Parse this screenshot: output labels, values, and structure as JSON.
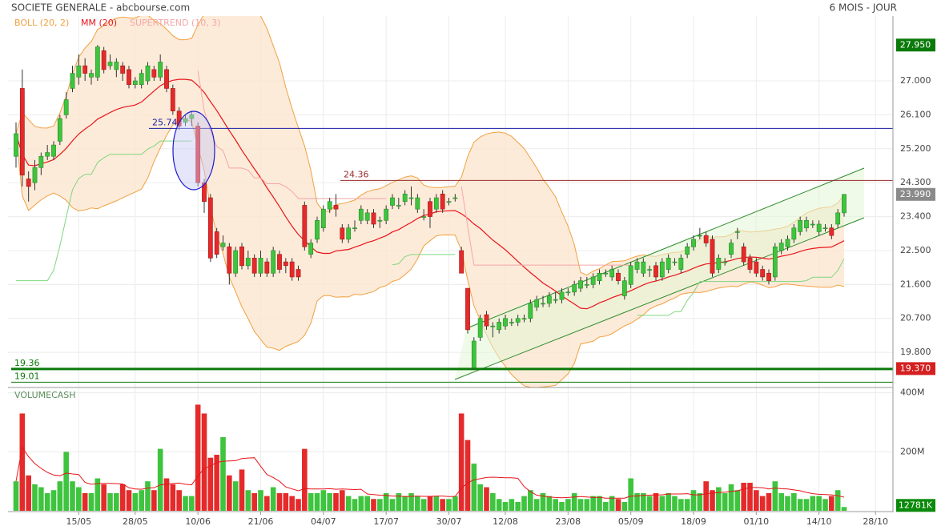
{
  "chart_data": {
    "type": "candlestick",
    "title": "SOCIETE GENERALE - abcbourse.com",
    "subtitle": "6 MOIS - JOUR",
    "indicators": [
      {
        "name": "BOLL (20, 2)",
        "kind": "bollinger",
        "period": 20,
        "k": 2,
        "color": "#f0a040",
        "fill": "#fde6cf"
      },
      {
        "name": "MM (20)",
        "kind": "ma",
        "period": 20,
        "color": "#e8141b"
      },
      {
        "name": "SUPERTREND (10, 3)",
        "kind": "supertrend",
        "period": 10,
        "multiplier": 3,
        "color": "#f4a6a6",
        "color_up": "#7fd67f"
      }
    ],
    "categories": [
      null,
      null,
      null,
      null,
      null,
      null,
      null,
      null,
      null,
      null,
      "15/05",
      null,
      null,
      null,
      null,
      null,
      null,
      null,
      null,
      "28/05",
      null,
      null,
      null,
      null,
      null,
      null,
      null,
      null,
      null,
      "10/06",
      null,
      null,
      null,
      null,
      null,
      null,
      null,
      null,
      null,
      "21/06",
      null,
      null,
      null,
      null,
      null,
      null,
      null,
      null,
      null,
      "04/07",
      null,
      null,
      null,
      null,
      null,
      null,
      null,
      null,
      null,
      "17/07",
      null,
      null,
      null,
      null,
      null,
      null,
      null,
      null,
      null,
      "30/07",
      null,
      null,
      null,
      null,
      null,
      null,
      null,
      null,
      "12/08",
      null,
      null,
      null,
      null,
      null,
      null,
      null,
      null,
      null,
      "23/08",
      null,
      null,
      null,
      null,
      null,
      null,
      null,
      null,
      null,
      "05/09",
      null,
      null,
      null,
      null,
      null,
      null,
      null,
      null,
      null,
      "18/09",
      null,
      null,
      null,
      null,
      null,
      null,
      null,
      null,
      null,
      "01/10",
      null,
      null,
      null,
      null,
      null,
      null,
      null,
      null,
      null,
      "14/10",
      null,
      null,
      null,
      null,
      null,
      null,
      null,
      null,
      "28/10"
    ],
    "open": [
      25.0,
      26.8,
      24.4,
      24.3,
      24.7,
      25.0,
      25.0,
      25.4,
      26.1,
      26.8,
      27.1,
      27.4,
      27.1,
      27.1,
      27.8,
      27.4,
      27.3,
      27.4,
      27.3,
      26.9,
      26.9,
      27.0,
      27.3,
      27.1,
      27.3,
      26.8,
      26.2,
      25.9,
      26.0,
      25.8,
      24.3,
      23.9,
      23.0,
      22.6,
      22.6,
      21.9,
      22.6,
      22.1,
      22.3,
      21.9,
      22.2,
      21.9,
      22.4,
      22.2,
      22.2,
      22.0,
      23.7,
      22.4,
      22.8,
      23.1,
      23.6,
      23.7,
      23.1,
      22.8,
      23.1,
      23.3,
      23.3,
      23.5,
      23.3,
      23.3,
      23.7,
      23.7,
      23.8,
      23.9,
      23.6,
      23.4,
      23.8,
      23.6,
      24.0,
      23.8,
      23.9,
      22.5,
      21.5,
      19.4,
      20.2,
      20.8,
      20.5,
      20.4,
      20.5,
      20.6,
      20.6,
      20.7,
      20.7,
      21.0,
      21.1,
      21.1,
      21.2,
      21.2,
      21.4,
      21.4,
      21.5,
      21.6,
      21.6,
      21.7,
      21.9,
      21.8,
      21.9,
      21.3,
      21.6,
      22.0,
      21.9,
      22.0,
      22.1,
      21.8,
      22.0,
      22.2,
      22.0,
      22.4,
      22.6,
      22.9,
      22.9,
      22.8,
      22.0,
      22.2,
      22.4,
      23.0,
      22.6,
      22.3,
      22.2,
      22.0,
      21.9,
      21.8,
      22.5,
      22.6,
      22.8,
      23.0,
      23.1,
      23.2,
      23.0,
      23.1,
      23.1,
      23.2,
      23.5,
      null,
      null,
      null,
      null,
      null
    ],
    "high": [
      25.9,
      27.3,
      24.6,
      24.9,
      25.1,
      25.3,
      25.4,
      26.1,
      26.7,
      27.4,
      27.7,
      27.6,
      27.3,
      27.95,
      27.9,
      27.7,
      27.6,
      27.5,
      27.4,
      27.1,
      27.3,
      27.5,
      27.4,
      27.7,
      27.4,
      26.9,
      26.3,
      26.1,
      26.2,
      25.9,
      24.4,
      24.0,
      23.1,
      22.9,
      22.7,
      22.6,
      22.7,
      22.5,
      22.4,
      22.5,
      22.3,
      22.6,
      22.5,
      22.3,
      22.3,
      22.1,
      23.8,
      22.8,
      23.4,
      23.7,
      23.9,
      24.0,
      23.2,
      23.2,
      23.3,
      23.7,
      23.6,
      23.6,
      23.4,
      23.7,
      24.0,
      23.9,
      24.1,
      24.2,
      24.0,
      23.6,
      23.9,
      24.0,
      24.1,
      23.9,
      24.0,
      22.6,
      21.5,
      20.2,
      20.8,
      20.9,
      20.6,
      20.7,
      20.8,
      20.7,
      20.8,
      20.8,
      21.2,
      21.3,
      21.3,
      21.4,
      21.4,
      21.5,
      21.5,
      21.7,
      21.8,
      21.8,
      21.9,
      22.0,
      22.0,
      22.1,
      22.0,
      21.8,
      22.2,
      22.3,
      22.3,
      22.1,
      22.2,
      22.3,
      22.4,
      22.3,
      22.4,
      22.7,
      22.9,
      23.1,
      23.0,
      22.9,
      22.4,
      22.3,
      22.8,
      23.1,
      22.7,
      22.4,
      22.3,
      22.1,
      22.0,
      22.7,
      22.8,
      22.9,
      23.2,
      23.4,
      23.4,
      23.3,
      23.3,
      23.2,
      23.2,
      23.6,
      24.0,
      null,
      null,
      null,
      null,
      null
    ],
    "low": [
      24.7,
      24.2,
      23.8,
      24.1,
      24.5,
      24.9,
      24.9,
      25.3,
      26.0,
      26.7,
      26.9,
      27.0,
      26.9,
      27.0,
      27.2,
      27.3,
      27.1,
      27.0,
      26.8,
      26.8,
      26.8,
      26.9,
      27.0,
      27.0,
      26.7,
      26.1,
      25.7,
      25.8,
      25.8,
      24.2,
      23.5,
      22.2,
      22.3,
      22.5,
      21.6,
      21.8,
      22.0,
      22.0,
      21.8,
      21.8,
      21.8,
      21.8,
      21.9,
      21.9,
      21.7,
      21.7,
      22.5,
      22.3,
      22.7,
      23.0,
      23.5,
      23.4,
      22.7,
      22.7,
      23.0,
      23.2,
      23.2,
      23.1,
      23.1,
      23.2,
      23.6,
      23.6,
      23.7,
      23.7,
      23.5,
      23.3,
      23.1,
      23.5,
      23.5,
      23.7,
      23.8,
      21.9,
      20.3,
      19.4,
      20.1,
      20.4,
      20.2,
      20.3,
      20.4,
      20.5,
      20.5,
      20.6,
      20.6,
      20.9,
      21.0,
      21.0,
      21.1,
      21.1,
      21.3,
      21.3,
      21.4,
      21.5,
      21.5,
      21.6,
      21.8,
      21.7,
      21.6,
      21.2,
      21.5,
      21.9,
      21.8,
      21.8,
      21.7,
      21.7,
      21.9,
      22.1,
      21.9,
      22.3,
      22.5,
      22.8,
      22.6,
      21.8,
      21.9,
      22.1,
      22.3,
      22.8,
      22.1,
      21.9,
      21.8,
      21.7,
      21.6,
      21.7,
      22.4,
      22.5,
      22.7,
      22.9,
      23.0,
      23.1,
      22.9,
      23.0,
      22.8,
      23.1,
      23.4,
      null,
      null,
      null,
      null,
      null
    ],
    "close": [
      25.6,
      24.5,
      24.2,
      24.7,
      25.0,
      25.1,
      25.3,
      26.0,
      26.5,
      27.2,
      27.4,
      27.2,
      27.2,
      27.9,
      27.3,
      27.5,
      27.5,
      27.2,
      26.9,
      27.0,
      27.2,
      27.4,
      27.1,
      27.5,
      26.8,
      26.2,
      25.8,
      26.0,
      26.1,
      24.3,
      23.8,
      22.3,
      22.4,
      22.7,
      21.9,
      22.5,
      22.1,
      22.3,
      21.9,
      22.3,
      21.9,
      22.5,
      22.0,
      22.1,
      21.8,
      21.8,
      22.6,
      22.7,
      23.3,
      23.6,
      23.8,
      23.6,
      22.8,
      23.1,
      23.1,
      23.6,
      23.5,
      23.2,
      23.3,
      23.6,
      23.9,
      23.7,
      24.0,
      23.9,
      23.9,
      23.4,
      23.4,
      23.9,
      23.6,
      23.8,
      23.9,
      21.9,
      20.4,
      20.1,
      20.7,
      20.5,
      20.5,
      20.6,
      20.7,
      20.6,
      20.7,
      20.7,
      21.1,
      21.2,
      21.1,
      21.3,
      21.2,
      21.4,
      21.4,
      21.6,
      21.7,
      21.6,
      21.8,
      21.9,
      21.9,
      22.0,
      21.7,
      21.7,
      22.1,
      22.2,
      22.2,
      22.0,
      21.8,
      22.2,
      22.3,
      22.2,
      22.3,
      22.6,
      22.8,
      22.9,
      22.7,
      21.9,
      22.3,
      22.2,
      22.7,
      23.0,
      22.2,
      22.0,
      21.9,
      21.8,
      21.7,
      22.6,
      22.7,
      22.8,
      23.1,
      23.3,
      23.3,
      23.2,
      23.2,
      23.1,
      22.9,
      23.5,
      23.99,
      null,
      null,
      null,
      null,
      null
    ],
    "up_color": "#3ec43e",
    "down_color": "#e42a2a",
    "ylim": [
      18.89,
      28.72
    ],
    "yticks": [
      {
        "value": 19.8,
        "label": "19.800"
      },
      {
        "value": 20.7,
        "label": "20.700"
      },
      {
        "value": 21.6,
        "label": "21.600"
      },
      {
        "value": 22.5,
        "label": "22.500"
      },
      {
        "value": 23.4,
        "label": "23.400"
      },
      {
        "value": 24.3,
        "label": "24.300"
      },
      {
        "value": 25.2,
        "label": "25.200"
      },
      {
        "value": 26.1,
        "label": "26.100"
      },
      {
        "value": 27.0,
        "label": "27.000"
      }
    ],
    "grid": true,
    "levels": [
      {
        "value": 25.74,
        "label": "25.74",
        "color": "#1a1aa0"
      },
      {
        "value": 24.36,
        "label": "24.36",
        "color": "#9a2a2a"
      },
      {
        "value": 19.36,
        "label": "19.36",
        "color": "#0a7a0a"
      },
      {
        "value": 19.01,
        "label": "19.01",
        "color": "#0a7a0a"
      }
    ],
    "price_markers": [
      {
        "value": 27.95,
        "label": "27.950",
        "color": "#0a7a0a"
      },
      {
        "value": 23.99,
        "label": "23.990",
        "color": "#8a8a8a"
      },
      {
        "value": 19.37,
        "label": "19.370",
        "color": "#d42020"
      }
    ],
    "volume": {
      "name": "VOLUMECASH",
      "ma_period": 10,
      "ma_color": "#e8141b",
      "values": [
        100,
        330,
        120,
        90,
        80,
        60,
        70,
        100,
        200,
        100,
        80,
        60,
        60,
        110,
        90,
        60,
        60,
        90,
        70,
        60,
        70,
        100,
        70,
        210,
        110,
        90,
        70,
        50,
        50,
        360,
        330,
        180,
        190,
        250,
        120,
        100,
        140,
        70,
        60,
        70,
        50,
        80,
        60,
        60,
        50,
        40,
        210,
        60,
        60,
        70,
        60,
        60,
        70,
        50,
        40,
        50,
        50,
        40,
        40,
        60,
        40,
        60,
        50,
        60,
        50,
        40,
        50,
        50,
        40,
        40,
        50,
        330,
        240,
        160,
        90,
        80,
        60,
        40,
        30,
        40,
        30,
        50,
        70,
        40,
        60,
        50,
        40,
        30,
        40,
        60,
        40,
        40,
        50,
        50,
        30,
        50,
        40,
        30,
        110,
        60,
        60,
        50,
        60,
        50,
        60,
        50,
        40,
        40,
        70,
        60,
        100,
        70,
        80,
        60,
        90,
        70,
        95,
        95,
        70,
        50,
        60,
        100,
        60,
        50,
        60,
        40,
        40,
        50,
        50,
        40,
        50,
        70,
        12.781,
        null,
        null,
        null,
        null,
        null
      ],
      "value_labels": [
        null,
        null,
        null,
        null,
        null,
        null,
        null,
        null,
        null,
        null,
        null,
        null,
        null,
        null,
        null,
        null,
        null,
        null,
        null,
        null,
        null,
        null,
        null,
        null,
        null,
        null,
        null,
        null,
        null,
        null,
        null,
        null,
        null,
        null,
        null,
        null,
        null,
        null,
        null,
        null,
        null,
        null,
        null,
        null,
        null,
        null,
        null,
        null,
        null,
        null,
        null,
        null,
        null,
        null,
        null,
        null,
        null,
        null,
        null,
        null,
        null,
        null,
        null,
        null,
        null,
        null,
        null,
        null,
        null,
        null,
        null,
        null,
        null,
        null,
        null,
        null,
        null,
        null,
        null,
        null,
        null,
        null,
        null,
        null,
        null,
        null,
        null,
        null,
        null,
        null,
        null,
        null,
        null,
        null,
        null,
        null,
        null,
        null,
        null,
        null,
        null,
        null,
        null,
        null,
        null,
        null,
        null,
        null,
        null,
        null,
        null,
        null,
        null,
        null,
        null,
        null,
        null,
        null,
        null,
        null,
        null,
        null,
        null,
        null,
        null,
        null,
        null,
        null,
        null,
        null,
        null,
        null,
        "12781K",
        null,
        null,
        null,
        null,
        null
      ],
      "ylim": [
        0,
        410
      ],
      "yticks": [
        {
          "value": 200,
          "label": "200M"
        },
        {
          "value": 400,
          "label": "400M"
        }
      ]
    }
  }
}
